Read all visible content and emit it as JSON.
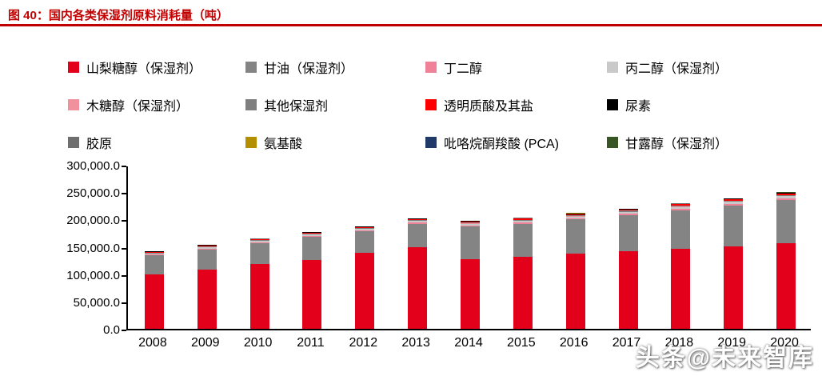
{
  "title": "图 40：国内各类保湿剂原料消耗量（吨）",
  "watermark": "头条@未来智库",
  "colors": {
    "title_red": "#c00000",
    "axis": "#000000"
  },
  "chart_data": {
    "type": "bar",
    "stacked": true,
    "title": "国内各类保湿剂原料消耗量（吨）",
    "xlabel": "",
    "ylabel": "",
    "grid": false,
    "legend_position": "top",
    "ylim": [
      0,
      300000
    ],
    "yticks": [
      "300,000.0",
      "250,000.0",
      "200,000.0",
      "150,000.0",
      "100,000.0",
      "50,000.0",
      "0.0"
    ],
    "categories": [
      "2008",
      "2009",
      "2010",
      "2011",
      "2012",
      "2013",
      "2014",
      "2015",
      "2016",
      "2017",
      "2018",
      "2019",
      "2020"
    ],
    "series": [
      {
        "name": "山梨糖醇（保湿剂）",
        "color": "#e2001a",
        "values": [
          100000,
          109000,
          119000,
          126000,
          139000,
          150000,
          127000,
          131000,
          137000,
          142000,
          146000,
          151000,
          156000
        ]
      },
      {
        "name": "甘油（保湿剂）",
        "color": "#848484",
        "values": [
          34000,
          36000,
          37000,
          42000,
          39000,
          42000,
          60000,
          61000,
          63000,
          66000,
          71000,
          75000,
          80000
        ]
      },
      {
        "name": "丁二醇",
        "color": "#ef8298",
        "values": [
          1500,
          1600,
          1700,
          1800,
          1900,
          2000,
          2100,
          2200,
          2300,
          2400,
          2500,
          2600,
          2700
        ]
      },
      {
        "name": "丙二醇（保湿剂）",
        "color": "#c9c9c9",
        "values": [
          2500,
          2600,
          2700,
          2800,
          2900,
          3000,
          3100,
          3200,
          3300,
          3400,
          3500,
          3600,
          3700
        ]
      },
      {
        "name": "木糖醇（保湿剂）",
        "color": "#f2919e",
        "values": [
          300,
          300,
          300,
          300,
          300,
          300,
          300,
          300,
          300,
          300,
          300,
          300,
          300
        ]
      },
      {
        "name": "其他保湿剂",
        "color": "#7f7f7f",
        "values": [
          1500,
          1550,
          1600,
          1650,
          1700,
          1750,
          1800,
          1850,
          1900,
          1950,
          2000,
          2050,
          2100
        ]
      },
      {
        "name": "透明质酸及其盐",
        "color": "#fe0000",
        "values": [
          800,
          900,
          1000,
          1100,
          1300,
          1500,
          1700,
          1900,
          2100,
          2300,
          2500,
          2700,
          2900
        ]
      },
      {
        "name": "尿素",
        "color": "#000000",
        "values": [
          1200,
          1200,
          1200,
          1200,
          1200,
          1200,
          1200,
          1200,
          1200,
          1200,
          1200,
          1200,
          1200
        ]
      },
      {
        "name": "胶原",
        "color": "#6e6e6e",
        "values": [
          300,
          300,
          300,
          300,
          300,
          300,
          300,
          300,
          300,
          300,
          300,
          300,
          300
        ]
      },
      {
        "name": "氨基酸",
        "color": "#b38f00",
        "values": [
          200,
          200,
          200,
          200,
          200,
          200,
          200,
          200,
          200,
          200,
          200,
          200,
          200
        ]
      },
      {
        "name": "吡咯烷酮羧酸 (PCA)",
        "color": "#1f3a68",
        "values": [
          150,
          150,
          150,
          150,
          150,
          150,
          150,
          150,
          150,
          150,
          150,
          150,
          150
        ]
      },
      {
        "name": "甘露醇（保湿剂）",
        "color": "#375623",
        "values": [
          150,
          150,
          150,
          150,
          150,
          150,
          150,
          150,
          150,
          150,
          150,
          150,
          150
        ]
      }
    ]
  }
}
